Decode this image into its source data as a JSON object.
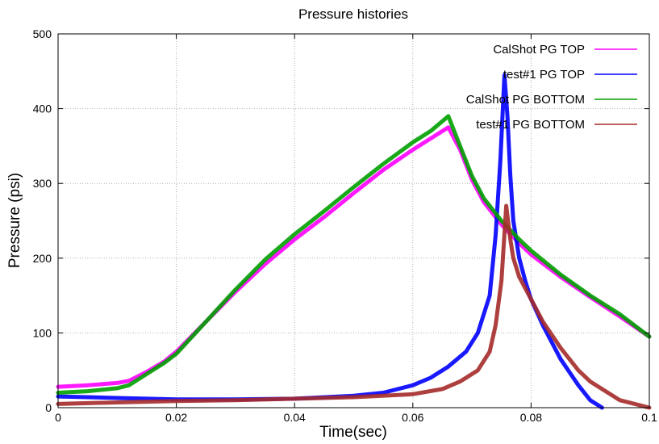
{
  "chart_data": {
    "type": "line",
    "title": "Pressure histories",
    "xlabel": "Time(sec)",
    "ylabel": "Pressure (psi)",
    "xlim": [
      0,
      0.1
    ],
    "ylim": [
      0,
      500
    ],
    "x_ticks": [
      0,
      0.02,
      0.04,
      0.06,
      0.08,
      0.1
    ],
    "x_tick_labels": [
      "0",
      "0.02",
      "0.04",
      "0.06",
      "0.08",
      "0.1"
    ],
    "y_ticks": [
      0,
      100,
      200,
      300,
      400,
      500
    ],
    "y_tick_labels": [
      "0",
      "100",
      "200",
      "300",
      "400",
      "500"
    ],
    "grid": true,
    "legend_position": "top-right",
    "series": [
      {
        "name": "CalShot PG TOP",
        "color": "#ff00ff",
        "x": [
          0,
          0.005,
          0.01,
          0.012,
          0.015,
          0.018,
          0.02,
          0.025,
          0.03,
          0.035,
          0.04,
          0.045,
          0.05,
          0.055,
          0.06,
          0.063,
          0.066,
          0.068,
          0.07,
          0.072,
          0.075,
          0.078,
          0.08,
          0.085,
          0.09,
          0.095,
          0.1
        ],
        "y": [
          28,
          30,
          33,
          36,
          48,
          62,
          75,
          115,
          155,
          192,
          225,
          255,
          287,
          318,
          345,
          360,
          375,
          345,
          305,
          275,
          245,
          220,
          205,
          175,
          148,
          122,
          95
        ]
      },
      {
        "name": "test#1 PG TOP",
        "color": "#0000ff",
        "x": [
          0,
          0.005,
          0.01,
          0.015,
          0.02,
          0.03,
          0.04,
          0.05,
          0.055,
          0.06,
          0.063,
          0.066,
          0.069,
          0.071,
          0.073,
          0.074,
          0.0748,
          0.0755,
          0.076,
          0.0765,
          0.077,
          0.078,
          0.079,
          0.08,
          0.082,
          0.085,
          0.088,
          0.09,
          0.092
        ],
        "y": [
          15,
          14,
          13,
          12,
          11,
          11,
          12,
          16,
          20,
          30,
          40,
          55,
          75,
          100,
          150,
          230,
          330,
          445,
          390,
          310,
          250,
          200,
          170,
          145,
          110,
          65,
          30,
          10,
          0
        ]
      },
      {
        "name": "CalShot PG BOTTOM",
        "color": "#00a000",
        "x": [
          0,
          0.005,
          0.01,
          0.012,
          0.015,
          0.018,
          0.02,
          0.025,
          0.03,
          0.035,
          0.04,
          0.045,
          0.05,
          0.055,
          0.06,
          0.063,
          0.066,
          0.068,
          0.07,
          0.072,
          0.075,
          0.078,
          0.08,
          0.085,
          0.09,
          0.095,
          0.1
        ],
        "y": [
          20,
          22,
          26,
          30,
          45,
          60,
          72,
          115,
          158,
          198,
          232,
          263,
          295,
          326,
          355,
          370,
          390,
          350,
          310,
          280,
          250,
          225,
          210,
          178,
          150,
          125,
          95
        ]
      },
      {
        "name": "test#1 PG BOTTOM",
        "color": "#a52a2a",
        "x": [
          0,
          0.005,
          0.01,
          0.015,
          0.02,
          0.03,
          0.04,
          0.05,
          0.06,
          0.065,
          0.068,
          0.071,
          0.073,
          0.074,
          0.075,
          0.0758,
          0.0765,
          0.077,
          0.078,
          0.08,
          0.082,
          0.085,
          0.088,
          0.09,
          0.095,
          0.1
        ],
        "y": [
          5,
          6,
          7,
          8,
          9,
          10,
          12,
          14,
          18,
          25,
          35,
          50,
          75,
          110,
          170,
          270,
          225,
          200,
          175,
          145,
          115,
          80,
          50,
          35,
          10,
          0
        ]
      }
    ]
  }
}
